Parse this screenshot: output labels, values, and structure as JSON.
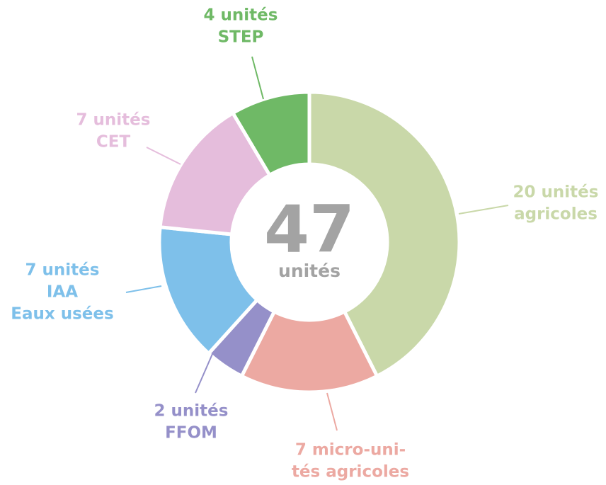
{
  "chart_data": {
    "type": "donut",
    "categories": [
      [
        "20 unités",
        "agricoles"
      ],
      [
        "7 micro-uni-",
        "tés agricoles"
      ],
      [
        "2 unités",
        "FFOM"
      ],
      [
        "7 unités",
        "IAA",
        "Eaux usées"
      ],
      [
        "7 unités",
        "CET"
      ],
      [
        "4 unités",
        "STEP"
      ]
    ],
    "values": [
      20,
      7,
      2,
      7,
      7,
      4
    ],
    "colors": [
      "#c9d8a9",
      "#eca9a2",
      "#9590c9",
      "#7ec0ea",
      "#e5bddc",
      "#6fb966"
    ],
    "center_value": 47,
    "center_label": "unités",
    "center_color": "#a3a3a3"
  }
}
